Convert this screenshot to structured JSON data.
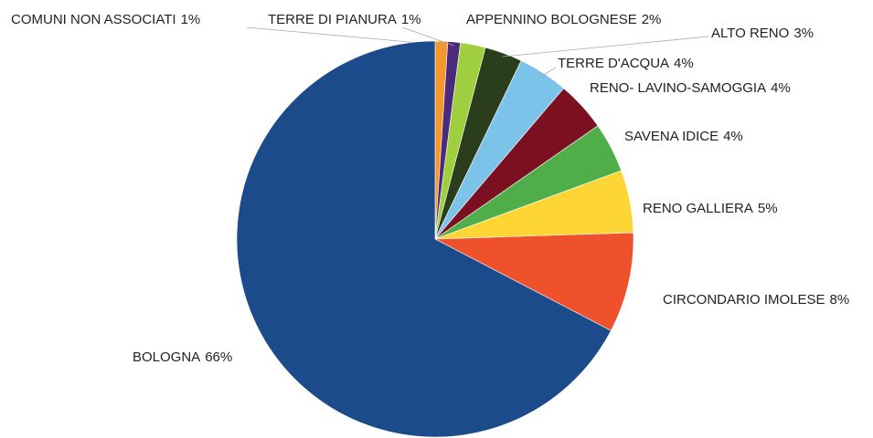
{
  "chart_data": {
    "type": "pie",
    "categories": [
      "COMUNI NON ASSOCIATI",
      "TERRE DI PIANURA",
      "APPENNINO BOLOGNESE",
      "ALTO RENO",
      "TERRE D'ACQUA",
      "RENO- LAVINO-SAMOGGIA",
      "SAVENA IDICE",
      "RENO GALLIERA",
      "CIRCONDARIO IMOLESE",
      "BOLOGNA"
    ],
    "values": [
      1,
      1,
      2,
      3,
      4,
      4,
      4,
      5,
      8,
      66
    ],
    "value_labels": [
      "1%",
      "1%",
      "2%",
      "3%",
      "4%",
      "4%",
      "4%",
      "5%",
      "8%",
      "66%"
    ],
    "colors": [
      "#f7962c",
      "#4b2a7b",
      "#9fcf3f",
      "#2a3e1c",
      "#7cc3ea",
      "#7a1020",
      "#4fae4a",
      "#fdd535",
      "#ef512d",
      "#1c4b8c"
    ]
  }
}
